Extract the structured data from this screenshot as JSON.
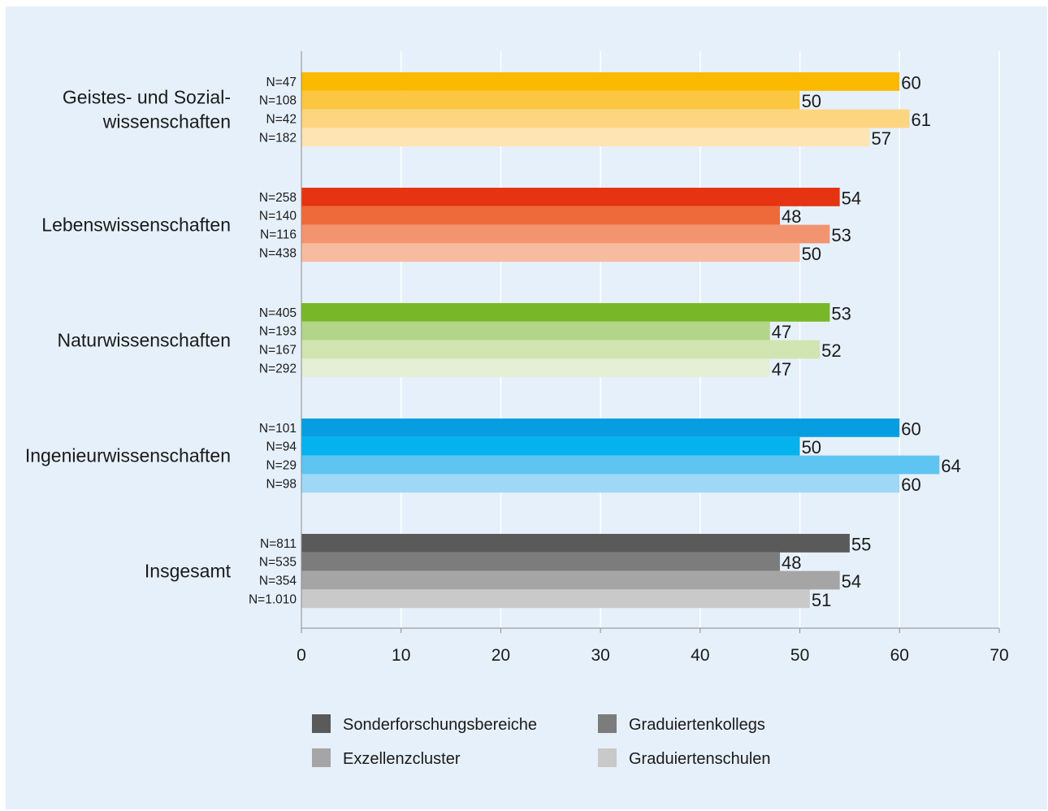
{
  "chart_data": {
    "type": "bar",
    "orientation": "horizontal",
    "title": "",
    "xlabel": "",
    "ylabel": "",
    "xlim": [
      0,
      70
    ],
    "xticks": [
      0,
      10,
      20,
      30,
      40,
      50,
      60,
      70
    ],
    "grid": true,
    "legend_position": "bottom",
    "series": [
      {
        "name": "Sonderforschungsbereiche",
        "legend_color": "#5a5a5a"
      },
      {
        "name": "Graduiertenkollegs",
        "legend_color": "#7c7c7c"
      },
      {
        "name": "Exzellenzcluster",
        "legend_color": "#a5a5a5"
      },
      {
        "name": "Graduiertenschulen",
        "legend_color": "#c9c9c9"
      }
    ],
    "groups": [
      {
        "label_lines": [
          "Geistes- und Sozial-",
          "wissenschaften"
        ],
        "colors": [
          "#fbb900",
          "#fcc740",
          "#fdd580",
          "#fee4b3"
        ],
        "bars": [
          {
            "n": "N=47",
            "value": 60
          },
          {
            "n": "N=108",
            "value": 50
          },
          {
            "n": "N=42",
            "value": 61
          },
          {
            "n": "N=182",
            "value": 57
          }
        ]
      },
      {
        "label_lines": [
          "Lebenswissenschaften"
        ],
        "colors": [
          "#e63312",
          "#ee6a3a",
          "#f39470",
          "#f7bb9f"
        ],
        "bars": [
          {
            "n": "N=258",
            "value": 54
          },
          {
            "n": "N=140",
            "value": 48
          },
          {
            "n": "N=116",
            "value": 53
          },
          {
            "n": "N=438",
            "value": 50
          }
        ]
      },
      {
        "label_lines": [
          "Naturwissenschaften"
        ],
        "colors": [
          "#78b828",
          "#b3d589",
          "#d0e5b2",
          "#e4efd6"
        ],
        "bars": [
          {
            "n": "N=405",
            "value": 53
          },
          {
            "n": "N=193",
            "value": 47
          },
          {
            "n": "N=167",
            "value": 52
          },
          {
            "n": "N=292",
            "value": 47
          }
        ]
      },
      {
        "label_lines": [
          "Ingenieurwissenschaften"
        ],
        "colors": [
          "#069ee0",
          "#04b2ee",
          "#5ec4f2",
          "#9fd8f6"
        ],
        "bars": [
          {
            "n": "N=101",
            "value": 60
          },
          {
            "n": "N=94",
            "value": 50
          },
          {
            "n": "N=29",
            "value": 64
          },
          {
            "n": "N=98",
            "value": 60
          }
        ]
      },
      {
        "label_lines": [
          "Insgesamt"
        ],
        "colors": [
          "#5a5a5a",
          "#7c7c7c",
          "#a5a5a5",
          "#c9c9c9"
        ],
        "bars": [
          {
            "n": "N=811",
            "value": 55
          },
          {
            "n": "N=535",
            "value": 48
          },
          {
            "n": "N=354",
            "value": 54
          },
          {
            "n": "N=1.010",
            "value": 51
          }
        ]
      }
    ]
  }
}
